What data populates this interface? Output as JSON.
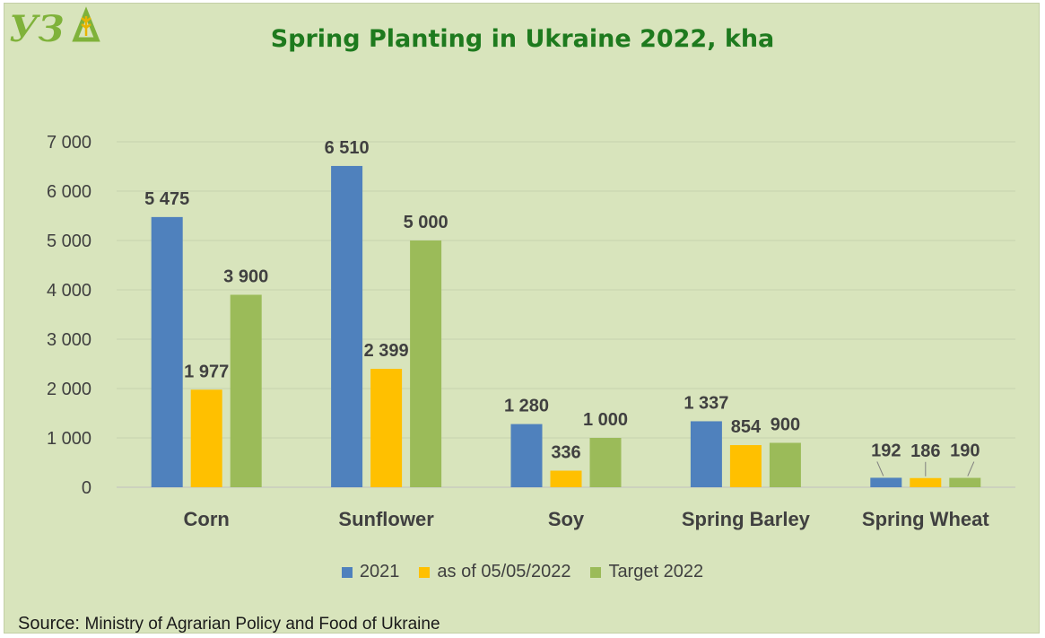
{
  "header": {
    "logo_text": "УЗА"
  },
  "source": {
    "label": "Source:",
    "text": "Ministry of Agrarian Policy and Food of Ukraine"
  },
  "chart_data": {
    "type": "bar",
    "title": "Spring Planting in Ukraine 2022, kha",
    "xlabel": "",
    "ylabel": "",
    "categories": [
      "Corn",
      "Sunflower",
      "Soy",
      "Spring Barley",
      "Spring Wheat"
    ],
    "series": [
      {
        "name": "2021",
        "color": "#4f81bd",
        "values": [
          5475,
          6510,
          1280,
          1337,
          192
        ],
        "labels": [
          "5 475",
          "6 510",
          "1 280",
          "1 337",
          "192"
        ]
      },
      {
        "name": "as of 05/05/2022",
        "color": "#ffc000",
        "values": [
          1977,
          2399,
          336,
          854,
          186
        ],
        "labels": [
          "1 977",
          "2 399",
          "336",
          "854",
          "186"
        ]
      },
      {
        "name": "Target 2022",
        "color": "#9bbb59",
        "values": [
          3900,
          5000,
          1000,
          900,
          190
        ],
        "labels": [
          "3 900",
          "5 000",
          "1 000",
          "900",
          "190"
        ]
      }
    ],
    "ylim": [
      0,
      7000
    ],
    "yticks": [
      0,
      1000,
      2000,
      3000,
      4000,
      5000,
      6000,
      7000
    ],
    "ytick_labels": [
      "0",
      "1 000",
      "2 000",
      "3 000",
      "4 000",
      "5 000",
      "6 000",
      "7 000"
    ],
    "grid": true,
    "legend_position": "bottom"
  }
}
